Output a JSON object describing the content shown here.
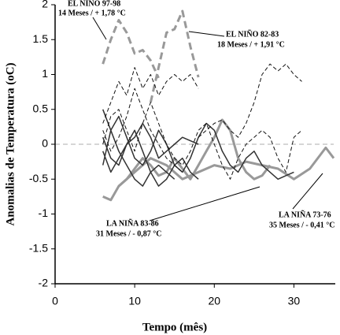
{
  "chart_data": {
    "type": "line",
    "xlabel": "Tempo (mês)",
    "ylabel": "Anomalias de Temperatura (oC)",
    "xlim": [
      0,
      35
    ],
    "ylim": [
      -2,
      2
    ],
    "xticks": [
      0,
      10,
      20,
      30
    ],
    "yticks": [
      -2,
      -1.5,
      -1,
      -0.5,
      0,
      0.5,
      1,
      1.5,
      2
    ],
    "zero_line_color": "#c8c8c8",
    "annotations": [
      {
        "title": "EL NIÑO 97-98",
        "text": "14 Meses / + 1,78 °C"
      },
      {
        "title": "EL NIÑO 82-83",
        "text": "18 Meses / + 1,91 °C"
      },
      {
        "title": "LA NIÑA 83-86",
        "text": "31 Meses / - 0,87 °C"
      },
      {
        "title": "LA NIÑA 73-76",
        "text": "35 Meses / - 0,41 °C"
      }
    ],
    "series": [
      {
        "color": "#999999",
        "style": "dashed",
        "width": 3,
        "x": [
          6,
          7,
          8,
          9,
          10,
          11,
          12,
          13
        ],
        "values": [
          1.15,
          1.5,
          1.78,
          1.6,
          1.3,
          1.35,
          1.2,
          0.95
        ]
      },
      {
        "color": "#999999",
        "style": "dashed",
        "width": 3,
        "x": [
          12,
          13,
          14,
          15,
          16,
          17,
          18
        ],
        "values": [
          0.6,
          1.1,
          1.6,
          1.65,
          1.91,
          1.4,
          0.96
        ]
      },
      {
        "color": "#999999",
        "style": "solid",
        "width": 3,
        "x": [
          6,
          7,
          8,
          9,
          10,
          11,
          12,
          13,
          14,
          15,
          16,
          17,
          18,
          19,
          20,
          21,
          22,
          23,
          24,
          25,
          26,
          27
        ],
        "values": [
          -0.75,
          -0.8,
          -0.6,
          -0.5,
          -0.35,
          -0.2,
          -0.3,
          -0.45,
          -0.4,
          -0.2,
          -0.35,
          -0.5,
          -0.3,
          -0.1,
          0.1,
          0.35,
          0.2,
          -0.2,
          -0.4,
          -0.5,
          -0.45,
          -0.3
        ]
      },
      {
        "color": "#999999",
        "style": "solid",
        "width": 3,
        "x": [
          8,
          10,
          12,
          14,
          16,
          18,
          20,
          22,
          24,
          26,
          28,
          30,
          32,
          34,
          35
        ],
        "values": [
          -0.6,
          -0.4,
          -0.2,
          -0.3,
          -0.5,
          -0.4,
          -0.3,
          -0.35,
          -0.25,
          -0.3,
          -0.35,
          -0.5,
          -0.35,
          -0.05,
          -0.2
        ]
      },
      {
        "color": "#333333",
        "style": "solid",
        "width": 1.5,
        "x": [
          6,
          7,
          8,
          9,
          10,
          11,
          12,
          13,
          14,
          15,
          16,
          17,
          18
        ],
        "values": [
          0.1,
          -0.2,
          -0.3,
          0.0,
          0.2,
          -0.1,
          -0.4,
          -0.6,
          -0.5,
          -0.3,
          -0.2,
          -0.4,
          -0.5
        ]
      },
      {
        "color": "#333333",
        "style": "solid",
        "width": 1.5,
        "x": [
          6,
          7,
          8,
          9,
          10,
          11,
          12,
          13,
          14,
          15,
          16,
          17,
          18,
          19,
          20,
          21,
          22,
          23,
          24,
          25,
          26,
          27,
          28,
          29,
          30
        ],
        "values": [
          -0.3,
          0.2,
          0.4,
          0.1,
          -0.2,
          -0.3,
          -0.1,
          0.2,
          0.0,
          -0.3,
          -0.4,
          -0.2,
          0.1,
          0.3,
          0.2,
          -0.1,
          -0.3,
          -0.4,
          -0.2,
          -0.1,
          -0.3,
          -0.4,
          -0.5,
          -0.45,
          -0.4
        ]
      },
      {
        "color": "#333333",
        "style": "solid",
        "width": 1.5,
        "x": [
          6,
          7,
          8,
          9,
          10,
          11,
          12,
          13,
          14,
          15
        ],
        "values": [
          0.5,
          0.2,
          -0.1,
          -0.3,
          -0.5,
          -0.6,
          -0.4,
          -0.3,
          -0.4,
          -0.5
        ]
      },
      {
        "color": "#333333",
        "style": "solid",
        "width": 1.5,
        "x": [
          6,
          7,
          8,
          9,
          10,
          11,
          12,
          13,
          14,
          15,
          16,
          17,
          18
        ],
        "values": [
          -0.1,
          -0.4,
          -0.2,
          0.0,
          0.1,
          0.3,
          0.1,
          -0.2,
          -0.1,
          0.0,
          0.1,
          0.05,
          0.0
        ]
      },
      {
        "color": "#111111",
        "style": "dashed",
        "width": 1,
        "x": [
          6,
          7,
          8,
          9,
          10,
          11,
          12,
          13,
          14,
          15,
          16,
          17,
          18
        ],
        "values": [
          0.3,
          0.6,
          0.9,
          0.7,
          1.1,
          0.8,
          1.0,
          0.7,
          0.9,
          1.0,
          0.9,
          1.0,
          0.8
        ]
      },
      {
        "color": "#111111",
        "style": "dashed",
        "width": 1,
        "x": [
          18,
          19,
          20,
          21,
          22,
          23,
          24,
          25,
          26,
          27,
          28,
          29,
          30,
          31
        ],
        "values": [
          0.1,
          0.2,
          0.3,
          0.35,
          0.2,
          0.1,
          0.3,
          0.6,
          1.0,
          1.15,
          1.05,
          1.15,
          1.0,
          0.9
        ]
      },
      {
        "color": "#111111",
        "style": "dashed",
        "width": 1,
        "x": [
          6,
          7,
          8,
          9,
          10,
          11,
          12,
          13,
          14,
          15,
          16,
          17,
          18,
          19,
          20,
          21,
          22,
          23,
          24,
          25,
          26,
          27,
          28,
          29,
          30,
          31
        ],
        "values": [
          0.0,
          0.4,
          0.5,
          0.2,
          -0.1,
          0.3,
          0.6,
          0.3,
          0.0,
          -0.2,
          -0.3,
          -0.1,
          0.2,
          0.3,
          0.0,
          -0.3,
          -0.5,
          -0.2,
          0.0,
          0.1,
          0.2,
          0.1,
          -0.2,
          -0.4,
          0.1,
          0.2
        ]
      },
      {
        "color": "#111111",
        "style": "dashed",
        "width": 1,
        "x": [
          6,
          7,
          8,
          9,
          10,
          11,
          12,
          13,
          14,
          15,
          16
        ],
        "values": [
          0.2,
          -0.1,
          0.1,
          0.4,
          0.8,
          0.5,
          0.2,
          0.0,
          -0.2,
          -0.3,
          -0.4
        ]
      }
    ]
  }
}
